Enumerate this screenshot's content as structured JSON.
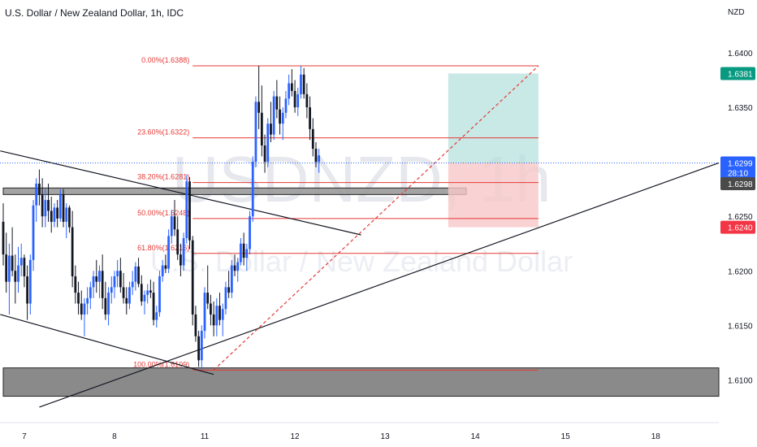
{
  "header": {
    "title": "U.S. Dollar / New Zealand Dollar, 1h, IDC"
  },
  "watermark": {
    "symbol": "USDNZD, 1h",
    "name": "U.S. Dollar / New Zealand Dollar"
  },
  "colors": {
    "up": "#2962ff",
    "down": "#131722",
    "fib": "#e53935",
    "target": "#b2dfdb",
    "stop": "#f8c8c8",
    "last_price": "#2962ff",
    "target_badge": "#089981",
    "stop_badge": "#f23645",
    "zone": "#6b6b6b"
  },
  "chart_data": {
    "type": "candlestick",
    "title": "U.S. Dollar / New Zealand Dollar, 1h, IDC",
    "currency_label": "NZD",
    "y_ticks": [
      "1.6400",
      "1.6350",
      "1.6300",
      "1.6250",
      "1.6200",
      "1.6150",
      "1.6100"
    ],
    "y_tick_values": [
      1.64,
      1.635,
      1.63,
      1.625,
      1.62,
      1.615,
      1.61
    ],
    "ylim": [
      1.6072,
      1.6435
    ],
    "x_ticks": [
      "7",
      "8",
      "11",
      "12",
      "13",
      "14",
      "15",
      "18"
    ],
    "x_tick_index": [
      7,
      37,
      67,
      97,
      127,
      157,
      187,
      217
    ],
    "bar_count": 238,
    "fib_levels": [
      {
        "label": "0.00%(1.6388)",
        "value": 1.6388
      },
      {
        "label": "23.60%(1.6322)",
        "value": 1.6322
      },
      {
        "label": "38.20%(1.6281)",
        "value": 1.6281
      },
      {
        "label": "50.00%(1.6248)",
        "value": 1.6248
      },
      {
        "label": "61.80%(1.6216)",
        "value": 1.6216
      },
      {
        "label": "100.00%(1.6109)",
        "value": 1.6109
      }
    ],
    "fib_start_index": 63,
    "fib_end_index": 178,
    "price_badges": [
      {
        "label": "1.6381",
        "value": 1.6381,
        "color": "#089981"
      },
      {
        "label": "1.6299",
        "value": 1.6299,
        "color": "#2962ff"
      },
      {
        "label": "28:10",
        "value": 1.629,
        "color": "#2962ff"
      },
      {
        "label": "1.6298",
        "value": 1.628,
        "color": "#4a4a4a"
      },
      {
        "label": "1.6240",
        "value": 1.624,
        "color": "#f23645"
      }
    ],
    "position": {
      "start_index": 148,
      "end_index": 178,
      "target": 1.6381,
      "entry": 1.6299,
      "stop": 1.624
    },
    "zones": [
      {
        "from": 1.627,
        "to": 1.6276,
        "start_index": 0,
        "end_index": 154
      },
      {
        "from": 1.6085,
        "to": 1.6111,
        "start_index": 0,
        "end_index": 238
      }
    ],
    "trendlines": [
      {
        "x0": -1,
        "y0": 1.631,
        "x1": 119,
        "y1": 1.6233,
        "dashed": false
      },
      {
        "x0": -1,
        "y0": 1.616,
        "x1": 70,
        "y1": 1.6105,
        "dashed": false
      },
      {
        "x0": 12,
        "y0": 1.6075,
        "x1": 238,
        "y1": 1.6299,
        "dashed": false
      },
      {
        "x0": 70,
        "y0": 1.6109,
        "x1": 178,
        "y1": 1.6388,
        "dashed": true
      }
    ],
    "candles": [
      [
        1.6245,
        1.6262,
        1.6205,
        1.6215
      ],
      [
        1.6215,
        1.6235,
        1.618,
        1.619
      ],
      [
        1.619,
        1.6225,
        1.616,
        1.6214
      ],
      [
        1.6214,
        1.624,
        1.6195,
        1.62
      ],
      [
        1.62,
        1.6215,
        1.617,
        1.619
      ],
      [
        1.619,
        1.6222,
        1.618,
        1.6205
      ],
      [
        1.6205,
        1.6225,
        1.6195,
        1.6212
      ],
      [
        1.6212,
        1.6215,
        1.6185,
        1.6195
      ],
      [
        1.6195,
        1.6205,
        1.6155,
        1.617
      ],
      [
        1.617,
        1.6215,
        1.616,
        1.621
      ],
      [
        1.621,
        1.6265,
        1.62,
        1.626
      ],
      [
        1.626,
        1.6285,
        1.6245,
        1.628
      ],
      [
        1.628,
        1.6293,
        1.626,
        1.627
      ],
      [
        1.627,
        1.6285,
        1.624,
        1.625
      ],
      [
        1.625,
        1.6275,
        1.624,
        1.6265
      ],
      [
        1.6265,
        1.628,
        1.6245,
        1.6255
      ],
      [
        1.6255,
        1.6268,
        1.6235,
        1.6245
      ],
      [
        1.6245,
        1.6262,
        1.624,
        1.6258
      ],
      [
        1.6258,
        1.6265,
        1.624,
        1.6248
      ],
      [
        1.6248,
        1.6275,
        1.6245,
        1.627
      ],
      [
        1.627,
        1.6275,
        1.624,
        1.6245
      ],
      [
        1.6245,
        1.6262,
        1.623,
        1.6258
      ],
      [
        1.6258,
        1.626,
        1.6235,
        1.624
      ],
      [
        1.624,
        1.6255,
        1.6185,
        1.6195
      ],
      [
        1.6195,
        1.6205,
        1.617,
        1.618
      ],
      [
        1.618,
        1.619,
        1.616,
        1.617
      ],
      [
        1.617,
        1.6182,
        1.6155,
        1.616
      ],
      [
        1.616,
        1.6175,
        1.614,
        1.617
      ],
      [
        1.617,
        1.6185,
        1.616,
        1.6175
      ],
      [
        1.6175,
        1.619,
        1.6165,
        1.6185
      ],
      [
        1.6185,
        1.62,
        1.6175,
        1.6195
      ],
      [
        1.6195,
        1.621,
        1.618,
        1.619
      ],
      [
        1.619,
        1.6205,
        1.6175,
        1.62
      ],
      [
        1.62,
        1.6215,
        1.6165,
        1.6175
      ],
      [
        1.6175,
        1.619,
        1.6155,
        1.616
      ],
      [
        1.616,
        1.6185,
        1.615,
        1.618
      ],
      [
        1.618,
        1.6195,
        1.617,
        1.6185
      ],
      [
        1.6185,
        1.62,
        1.6175,
        1.6195
      ],
      [
        1.6195,
        1.621,
        1.6185,
        1.62
      ],
      [
        1.62,
        1.6212,
        1.618,
        1.6185
      ],
      [
        1.6185,
        1.6198,
        1.617,
        1.6175
      ],
      [
        1.6175,
        1.6185,
        1.616,
        1.617
      ],
      [
        1.617,
        1.619,
        1.6165,
        1.6185
      ],
      [
        1.6185,
        1.62,
        1.6178,
        1.619
      ],
      [
        1.619,
        1.6208,
        1.6182,
        1.6204
      ],
      [
        1.6204,
        1.6212,
        1.6185,
        1.6188
      ],
      [
        1.6188,
        1.6196,
        1.6168,
        1.6172
      ],
      [
        1.6172,
        1.6182,
        1.616,
        1.6178
      ],
      [
        1.6178,
        1.6188,
        1.617,
        1.6182
      ],
      [
        1.6182,
        1.6192,
        1.6175,
        1.618
      ],
      [
        1.618,
        1.619,
        1.615,
        1.6155
      ],
      [
        1.6155,
        1.6168,
        1.6148,
        1.6162
      ],
      [
        1.6162,
        1.62,
        1.6158,
        1.6195
      ],
      [
        1.6195,
        1.621,
        1.619,
        1.6205
      ],
      [
        1.6205,
        1.6215,
        1.6198,
        1.6202
      ],
      [
        1.6202,
        1.6238,
        1.6198,
        1.6232
      ],
      [
        1.6232,
        1.6256,
        1.6225,
        1.625
      ],
      [
        1.625,
        1.6265,
        1.6232,
        1.6238
      ],
      [
        1.6238,
        1.625,
        1.621,
        1.6215
      ],
      [
        1.6215,
        1.6225,
        1.6195,
        1.6205
      ],
      [
        1.6205,
        1.6235,
        1.62,
        1.623
      ],
      [
        1.623,
        1.6288,
        1.6225,
        1.6282
      ],
      [
        1.6282,
        1.6286,
        1.622,
        1.6228
      ],
      [
        1.6228,
        1.6232,
        1.615,
        1.616
      ],
      [
        1.616,
        1.6168,
        1.6135,
        1.614
      ],
      [
        1.614,
        1.6145,
        1.6112,
        1.6118
      ],
      [
        1.6118,
        1.615,
        1.611,
        1.6145
      ],
      [
        1.6145,
        1.6185,
        1.6138,
        1.618
      ],
      [
        1.618,
        1.6205,
        1.6165,
        1.617
      ],
      [
        1.617,
        1.6178,
        1.615,
        1.616
      ],
      [
        1.616,
        1.6172,
        1.614,
        1.615
      ],
      [
        1.615,
        1.6175,
        1.614,
        1.6168
      ],
      [
        1.6168,
        1.618,
        1.615,
        1.6155
      ],
      [
        1.6155,
        1.617,
        1.614,
        1.6165
      ],
      [
        1.6165,
        1.619,
        1.616,
        1.6185
      ],
      [
        1.6185,
        1.62,
        1.6175,
        1.618
      ],
      [
        1.618,
        1.621,
        1.6175,
        1.6205
      ],
      [
        1.6205,
        1.6215,
        1.6195,
        1.62
      ],
      [
        1.62,
        1.6212,
        1.619,
        1.6208
      ],
      [
        1.6208,
        1.623,
        1.6205,
        1.6225
      ],
      [
        1.6225,
        1.6235,
        1.6205,
        1.6212
      ],
      [
        1.6212,
        1.6225,
        1.62,
        1.622
      ],
      [
        1.622,
        1.6255,
        1.6215,
        1.625
      ],
      [
        1.625,
        1.6305,
        1.6245,
        1.63
      ],
      [
        1.63,
        1.636,
        1.6295,
        1.6355
      ],
      [
        1.6355,
        1.6388,
        1.633,
        1.6345
      ],
      [
        1.6345,
        1.637,
        1.6305,
        1.6315
      ],
      [
        1.6315,
        1.6325,
        1.629,
        1.63
      ],
      [
        1.63,
        1.634,
        1.6295,
        1.6335
      ],
      [
        1.6335,
        1.6355,
        1.6318,
        1.6325
      ],
      [
        1.6325,
        1.6365,
        1.632,
        1.636
      ],
      [
        1.636,
        1.6375,
        1.634,
        1.6348
      ],
      [
        1.6348,
        1.636,
        1.6325,
        1.6335
      ],
      [
        1.6335,
        1.635,
        1.632,
        1.6345
      ],
      [
        1.6345,
        1.6365,
        1.634,
        1.6358
      ],
      [
        1.6358,
        1.638,
        1.6352,
        1.6372
      ],
      [
        1.6372,
        1.6385,
        1.636,
        1.6365
      ],
      [
        1.6365,
        1.6375,
        1.6345,
        1.635
      ],
      [
        1.635,
        1.6368,
        1.6342,
        1.6362
      ],
      [
        1.6362,
        1.6388,
        1.6358,
        1.638
      ],
      [
        1.638,
        1.6386,
        1.6358,
        1.6362
      ],
      [
        1.6362,
        1.6372,
        1.634,
        1.635
      ],
      [
        1.635,
        1.636,
        1.632,
        1.633
      ],
      [
        1.633,
        1.634,
        1.6305,
        1.6312
      ],
      [
        1.6312,
        1.6318,
        1.6295,
        1.63
      ],
      [
        1.63,
        1.6312,
        1.629,
        1.6306
      ]
    ]
  }
}
